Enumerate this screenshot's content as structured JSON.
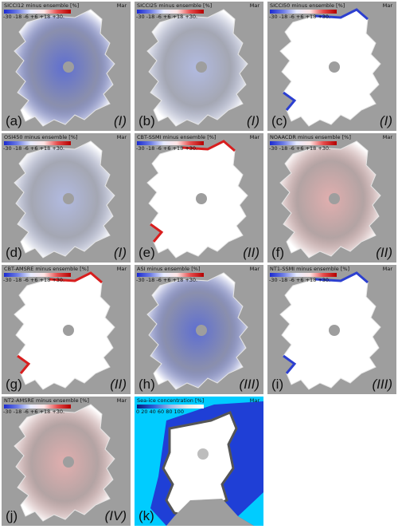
{
  "panels": [
    {
      "title": "SICCI12 minus ensemble [%]",
      "month": "Mar",
      "ticks": "-30 -18  -6  +6  +18 +30.",
      "label": "(a)",
      "class": "(I)",
      "style": "blue_mid"
    },
    {
      "title": "SICCI25 minus ensemble [%]",
      "month": "Mar",
      "ticks": "-30 -18  -6  +6  +18 +30.",
      "label": "(b)",
      "class": "(I)",
      "style": "blue_light"
    },
    {
      "title": "SICCI50 minus ensemble [%]",
      "month": "Mar",
      "ticks": "-30 -18  -6  +6  +18 +30.",
      "label": "(c)",
      "class": "(I)",
      "style": "blue_edge"
    },
    {
      "title": "OSI450 minus ensemble [%]",
      "month": "Mar",
      "ticks": "-30 -18  -6  +6  +18 +30.",
      "label": "(d)",
      "class": "(I)",
      "style": "blue_light"
    },
    {
      "title": "CBT-SSMI minus ensemble [%]",
      "month": "Mar",
      "ticks": "-30 -18  -6  +6  +18 +30.",
      "label": "(e)",
      "class": "(II)",
      "style": "red_edge"
    },
    {
      "title": "NOAACDR minus ensemble [%]",
      "month": "Mar",
      "ticks": "-30 -18  -6  +6  +18 +30.",
      "label": "(f)",
      "class": "(II)",
      "style": "red_light"
    },
    {
      "title": "CBT-AMSRE minus ensemble [%]",
      "month": "Mar",
      "ticks": "-30 -18  -6  +6  +18 +30.",
      "label": "(g)",
      "class": "(II)",
      "style": "red_edge"
    },
    {
      "title": "ASI minus ensemble [%]",
      "month": "Mar",
      "ticks": "-30 -18  -6  +6  +18 +30.",
      "label": "(h)",
      "class": "(III)",
      "style": "blue_mid"
    },
    {
      "title": "NT1-SSMI minus ensemble [%]",
      "month": "Mar",
      "ticks": "-30 -18  -6  +6  +18 +30.",
      "label": "(i)",
      "class": "(III)",
      "style": "blue_edge"
    },
    {
      "title": "NT2-AMSRE minus ensemble [%]",
      "month": "Mar",
      "ticks": "-30 -18  -6  +6  +18 +30.",
      "label": "(j)",
      "class": "(IV)",
      "style": "red_light"
    },
    {
      "title": "Sea-ice concentration [%]",
      "month": "Mar",
      "ticks": "0    20    40    60    80   100",
      "label": "(k)",
      "class": "",
      "style": "concentration"
    }
  ],
  "colors": {
    "land": "#9e9e9e",
    "ice": "#ffffff",
    "ocean": "#00ccff",
    "open_water": "#1f3fd6",
    "negative": "#2c3fd0",
    "positive": "#d81e1e"
  }
}
